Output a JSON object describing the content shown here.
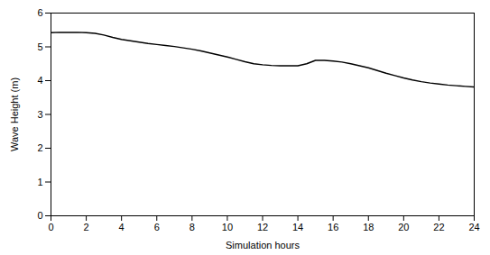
{
  "chart_data": {
    "type": "line",
    "x": [
      0,
      0.5,
      1,
      1.5,
      2,
      2.5,
      3,
      3.5,
      4,
      4.5,
      5,
      5.5,
      6,
      6.5,
      7,
      7.5,
      8,
      8.5,
      9,
      9.5,
      10,
      10.5,
      11,
      11.5,
      12,
      12.5,
      13,
      13.5,
      14,
      14.5,
      15,
      15.5,
      16,
      16.5,
      17,
      17.5,
      18,
      18.5,
      19,
      19.5,
      20,
      20.5,
      21,
      21.5,
      22,
      22.5,
      23,
      23.5,
      24
    ],
    "values": [
      5.42,
      5.43,
      5.43,
      5.43,
      5.42,
      5.4,
      5.35,
      5.28,
      5.22,
      5.18,
      5.14,
      5.1,
      5.07,
      5.04,
      5.01,
      4.97,
      4.93,
      4.88,
      4.82,
      4.76,
      4.7,
      4.63,
      4.56,
      4.5,
      4.47,
      4.45,
      4.44,
      4.44,
      4.44,
      4.5,
      4.6,
      4.6,
      4.58,
      4.55,
      4.5,
      4.44,
      4.38,
      4.3,
      4.22,
      4.15,
      4.08,
      4.02,
      3.97,
      3.93,
      3.9,
      3.87,
      3.85,
      3.83,
      3.81
    ],
    "color": "#000000",
    "xlabel": "Simulation hours",
    "ylabel": "Wave Height (m)",
    "xlim": [
      0,
      24
    ],
    "ylim": [
      0,
      6
    ],
    "xticks": [
      0,
      2,
      4,
      6,
      8,
      10,
      12,
      14,
      16,
      18,
      20,
      22,
      24
    ],
    "yticks": [
      0,
      1,
      2,
      3,
      4,
      5,
      6
    ]
  }
}
